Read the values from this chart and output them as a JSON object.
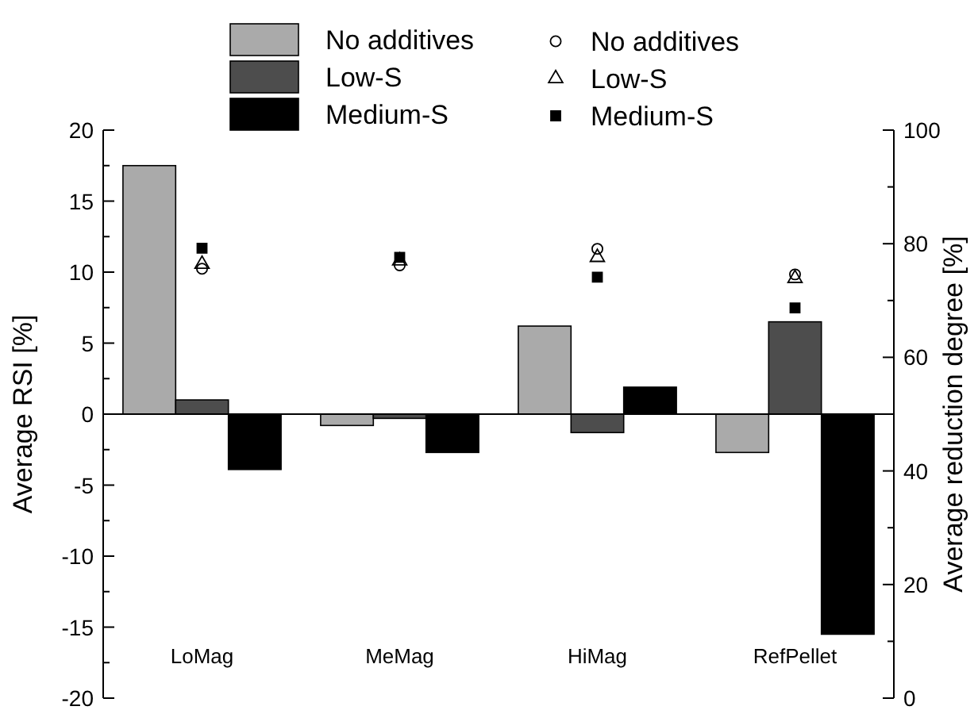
{
  "chart_data": {
    "type": "bar",
    "ylabel": "Average RSI [%]",
    "y2label": "Average reduction degree [%]",
    "categories": [
      "LoMag",
      "MeMag",
      "HiMag",
      "RefPellet"
    ],
    "series": [
      {
        "name": "No additives",
        "color": "#aaaaaa",
        "values": [
          17.5,
          -0.8,
          6.2,
          -2.7
        ]
      },
      {
        "name": "Low-S",
        "color": "#4d4d4d",
        "values": [
          1.0,
          -0.3,
          -1.3,
          6.5
        ]
      },
      {
        "name": "Medium-S",
        "color": "#000000",
        "values": [
          -3.9,
          -2.7,
          1.9,
          -15.5
        ]
      },
      {
        "name": "No additives",
        "type": "scatter",
        "axis": "y2",
        "marker": "circle",
        "color": "#000000",
        "x": [
          "LoMag",
          "MeMag",
          "HiMag",
          "RefPellet"
        ],
        "values": [
          75.6,
          76.2,
          79.1,
          74.6
        ]
      },
      {
        "name": "Low-S",
        "type": "scatter",
        "axis": "y2",
        "marker": "triangle",
        "color": "#000000",
        "x": [
          "LoMag",
          "MeMag",
          "HiMag",
          "RefPellet"
        ],
        "values": [
          76.4,
          77,
          77.6,
          73.9
        ]
      },
      {
        "name": "Medium-S",
        "type": "scatter",
        "axis": "y2",
        "marker": "square",
        "color": "#000000",
        "x": [
          "LoMag",
          "MeMag",
          "HiMag",
          "RefPellet"
        ],
        "values": [
          79.2,
          77.6,
          74.1,
          68.7
        ]
      }
    ],
    "ylim": [
      -20,
      20
    ],
    "yticks": [
      -20,
      {
        "value": -17.5,
        "label": null
      },
      -15,
      {
        "value": -12.5,
        "label": null
      },
      -10,
      {
        "value": -7.5,
        "label": null
      },
      -5,
      {
        "value": -2.5,
        "label": null
      },
      0,
      {
        "value": 2.5,
        "label": null
      },
      5,
      {
        "value": 7.5,
        "label": null
      },
      10,
      {
        "value": 12.5,
        "label": null
      },
      15,
      {
        "value": 17.5,
        "label": null
      },
      20
    ],
    "y2lim": [
      0,
      100
    ],
    "y2ticks": [
      0,
      {
        "value": 10,
        "label": null
      },
      20,
      {
        "value": 30,
        "label": null
      },
      40,
      {
        "value": 50,
        "label": null
      },
      60,
      {
        "value": 70,
        "label": null
      },
      80,
      {
        "value": 90,
        "label": null
      },
      100
    ],
    "ref_lines": [
      {
        "axis": "y",
        "value": 0,
        "color": "#000000"
      }
    ],
    "legend": "top",
    "grid": false
  }
}
